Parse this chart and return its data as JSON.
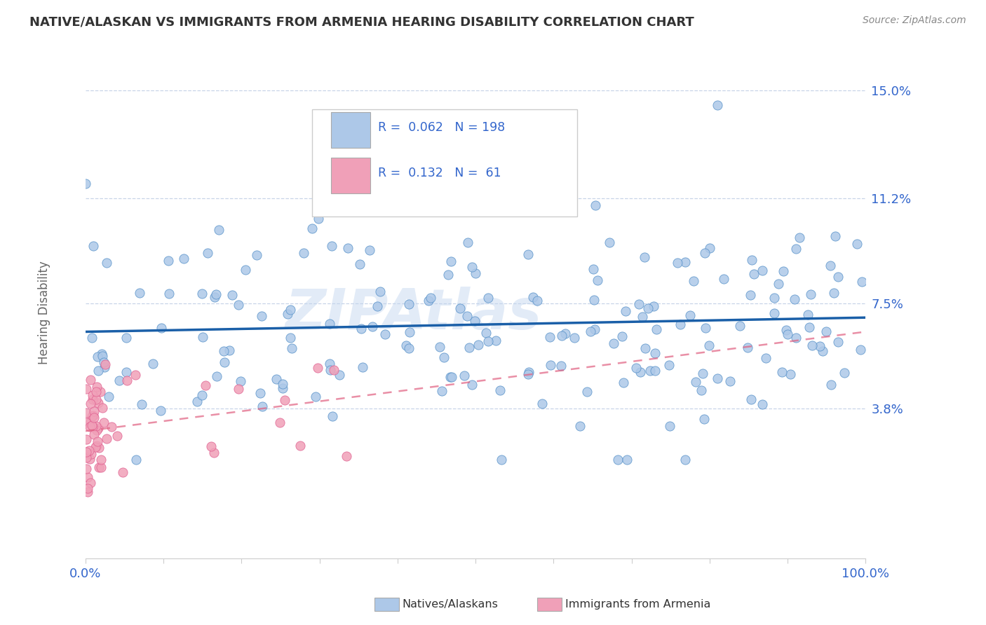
{
  "title": "NATIVE/ALASKAN VS IMMIGRANTS FROM ARMENIA HEARING DISABILITY CORRELATION CHART",
  "source": "Source: ZipAtlas.com",
  "ylabel": "Hearing Disability",
  "watermark": "ZIPAtlas",
  "xlim": [
    0,
    100
  ],
  "ylim_bottom": -1.5,
  "ylim_top": 16.5,
  "yticks": [
    3.8,
    7.5,
    11.2,
    15.0
  ],
  "ytick_labels": [
    "3.8%",
    "7.5%",
    "11.2%",
    "15.0%"
  ],
  "xtick_labels_show": [
    "0.0%",
    "100.0%"
  ],
  "native_color": "#adc8e8",
  "native_edge_color": "#5590c8",
  "native_line_color": "#1a5fa8",
  "armenia_color": "#f0a0b8",
  "armenia_edge_color": "#e06090",
  "armenia_line_color": "#e06080",
  "legend_R1": "0.062",
  "legend_N1": "198",
  "legend_R2": "0.132",
  "legend_N2": "61",
  "native_trend_start_y": 6.5,
  "native_trend_end_y": 7.0,
  "armenia_trend_start_y": 3.0,
  "armenia_trend_end_y": 6.5,
  "background_color": "#ffffff",
  "grid_color": "#c8d4e8",
  "title_color": "#333333",
  "axis_label_color": "#3366cc",
  "source_color": "#888888",
  "ylabel_color": "#666666"
}
